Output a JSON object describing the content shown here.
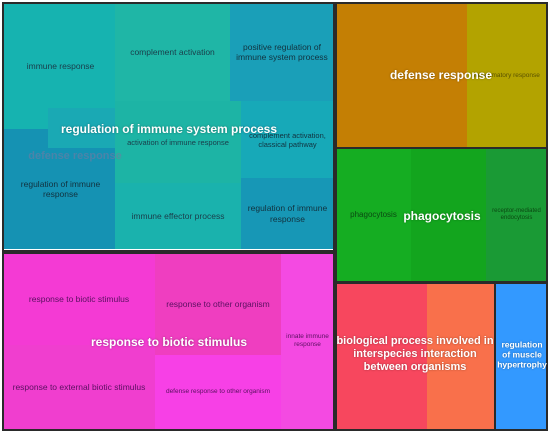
{
  "chart_data": {
    "type": "treemap",
    "groups": [
      {
        "name": "regulation of immune system process",
        "color": "#1aa7b8",
        "tiles": [
          {
            "label": "immune response",
            "color": "#16b3b0"
          },
          {
            "label": "complement activation",
            "color": "#1fb6a6"
          },
          {
            "label": "positive regulation of immune system process",
            "color": "#1a9fb8"
          },
          {
            "label": "regulation of immune response",
            "color": "#1592b3"
          },
          {
            "label": "regulation of immune system process",
            "color": "#1aa9b4"
          },
          {
            "label": "activation of immune response",
            "color": "#1db4a5"
          },
          {
            "label": "complement activation, classical pathway",
            "color": "#17a9b8"
          },
          {
            "label": "immune effector process",
            "color": "#1ab2ad"
          },
          {
            "label": "regulation of immune response",
            "color": "#1797b6"
          }
        ]
      },
      {
        "name": "defense response",
        "color": "#c88200",
        "tiles": [
          {
            "label": "defense response",
            "color": "#c47f04"
          },
          {
            "label": "inflammatory response",
            "color": "#b3a300"
          }
        ]
      },
      {
        "name": "phagocytosis",
        "color": "#14a820",
        "tiles": [
          {
            "label": "phagocytosis",
            "color": "#15ad22"
          },
          {
            "label": "phagocytosis",
            "color": "#13a51e"
          },
          {
            "label": "receptor-mediated endocytosis",
            "color": "#1a9a35"
          }
        ]
      },
      {
        "name": "response to biotic stimulus",
        "color": "#f43dd2",
        "tiles": [
          {
            "label": "response to biotic stimulus",
            "color": "#f43ad4"
          },
          {
            "label": "response to other organism",
            "color": "#ef3ec0"
          },
          {
            "label": "innate immune response",
            "color": "#f44ae2"
          },
          {
            "label": "response to external biotic stimulus",
            "color": "#f03ecf"
          },
          {
            "label": "defense response to other organism",
            "color": "#f740e6"
          }
        ]
      },
      {
        "name": "biological process involved in interspecies interaction between organisms",
        "color": "#f74a5a",
        "tiles": [
          {
            "label": "biological process involved in interspecies interaction between organisms",
            "color": "#f7475e"
          },
          {
            "label": "biological process involved in interspecies interaction between organisms",
            "color": "#f9704b"
          }
        ]
      },
      {
        "name": "regulation of muscle hypertrophy",
        "color": "#3399ff",
        "tiles": [
          {
            "label": "regulation of muscle hypertrophy",
            "color": "#3399ff"
          }
        ]
      }
    ],
    "overlay_labels": [
      "regulation of immune system process",
      "defense response",
      "phagocytosis",
      "response to biotic stimulus",
      "biological process involved in interspecies interaction between organisms",
      "regulation of muscle hypertrophy"
    ],
    "hidden_labels": [
      "defense response"
    ]
  }
}
